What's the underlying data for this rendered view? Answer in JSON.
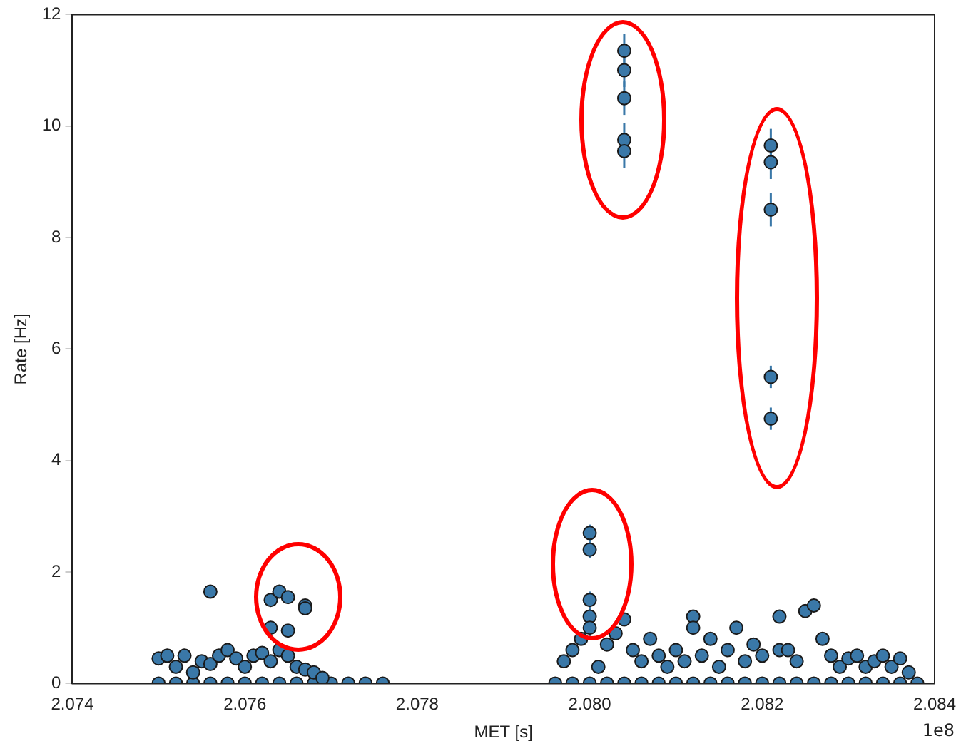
{
  "chart_data": {
    "type": "scatter",
    "xlabel": "MET [s]",
    "ylabel": "Rate [Hz]",
    "annotations": [
      "1e8"
    ],
    "xlim": [
      2.074,
      2.084
    ],
    "xticks": [
      2.074,
      2.076,
      2.078,
      {
        "value": 2.08,
        "label": "2.080"
      },
      2.082,
      2.084
    ],
    "ylim": [
      0,
      12
    ],
    "yticks": [
      0,
      2,
      4,
      6,
      8,
      10,
      12
    ],
    "grid": false,
    "legend": false,
    "marker": "circle",
    "series": [
      {
        "color": "#3a78a8",
        "x": [
          2.0804,
          2.0804,
          2.0804,
          2.0804,
          2.0804,
          2.0821,
          2.0821,
          2.0821,
          2.0821,
          2.0821,
          2.08,
          2.08,
          2.08,
          2.08,
          2.08
        ],
        "values": [
          11.35,
          11.0,
          10.5,
          9.75,
          9.55,
          9.65,
          9.35,
          8.5,
          5.5,
          4.75,
          2.7,
          2.4,
          1.5,
          1.2,
          1.0
        ],
        "errors": [
          0.3,
          0.3,
          0.3,
          0.3,
          0.3,
          0.3,
          0.3,
          0.3,
          0.2,
          0.2,
          0.15,
          0.15,
          0.15,
          0.15,
          0.15
        ]
      },
      {
        "color": "#3a78a8",
        "x": [
          2.075,
          2.0751,
          2.0752,
          2.0753,
          2.0754,
          2.0755,
          2.0756,
          2.0756,
          2.0757,
          2.0758,
          2.0759,
          2.076,
          2.0761,
          2.0762,
          2.0763,
          2.0763,
          2.0763,
          2.0764,
          2.0764,
          2.0765,
          2.0765,
          2.0765,
          2.0766,
          2.0767,
          2.0767,
          2.0767,
          2.0768,
          2.0769,
          2.0797,
          2.0798,
          2.0799,
          2.0801,
          2.0802,
          2.0803,
          2.0804,
          2.0805,
          2.0806,
          2.0807,
          2.0808,
          2.0809,
          2.081,
          2.0811,
          2.0812,
          2.0812,
          2.0813,
          2.0814,
          2.0815,
          2.0816,
          2.0817,
          2.0818,
          2.0819,
          2.082,
          2.0822,
          2.0822,
          2.0823,
          2.0824,
          2.0825,
          2.0826,
          2.0827,
          2.0828,
          2.0829,
          2.083,
          2.0831,
          2.0832,
          2.0833,
          2.0834,
          2.0835,
          2.0836,
          2.0837
        ],
        "values": [
          0.45,
          0.5,
          0.3,
          0.5,
          0.2,
          0.4,
          0.35,
          1.65,
          0.5,
          0.6,
          0.45,
          0.3,
          0.5,
          0.55,
          1.5,
          1.0,
          0.4,
          1.65,
          0.6,
          1.55,
          0.95,
          0.5,
          0.3,
          1.4,
          1.35,
          0.25,
          0.2,
          0.1,
          0.4,
          0.6,
          0.8,
          0.3,
          0.7,
          0.9,
          1.15,
          0.6,
          0.4,
          0.8,
          0.5,
          0.3,
          0.6,
          0.4,
          1.2,
          1.0,
          0.5,
          0.8,
          0.3,
          0.6,
          1.0,
          0.4,
          0.7,
          0.5,
          1.2,
          0.6,
          0.6,
          0.4,
          1.3,
          1.4,
          0.8,
          0.5,
          0.3,
          0.45,
          0.5,
          0.3,
          0.4,
          0.5,
          0.3,
          0.45,
          0.2
        ]
      },
      {
        "color": "#3a78a8",
        "x": [
          2.075,
          2.0752,
          2.0754,
          2.0756,
          2.0758,
          2.076,
          2.0762,
          2.0764,
          2.0766,
          2.0768,
          2.077,
          2.0772,
          2.0774,
          2.0776,
          2.0796,
          2.0798,
          2.08,
          2.0802,
          2.0804,
          2.0806,
          2.0808,
          2.081,
          2.0812,
          2.0814,
          2.0816,
          2.0818,
          2.082,
          2.0822,
          2.0824,
          2.0826,
          2.0828,
          2.083,
          2.0832,
          2.0834,
          2.0836,
          2.0838
        ],
        "values": [
          0,
          0,
          0,
          0,
          0,
          0,
          0,
          0,
          0,
          0,
          0,
          0,
          0,
          0,
          0,
          0,
          0,
          0,
          0,
          0,
          0,
          0,
          0,
          0,
          0,
          0,
          0,
          0,
          0,
          0,
          0,
          0,
          0,
          0,
          0,
          0
        ]
      }
    ]
  }
}
